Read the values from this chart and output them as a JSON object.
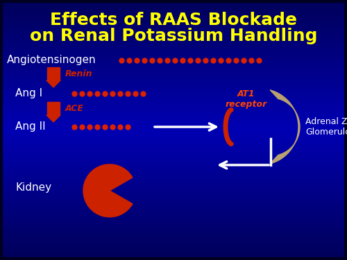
{
  "title_line1": "Effects of RAAS Blockade",
  "title_line2": "on Renal Potassium Handling",
  "title_color": "#FFFF00",
  "title_fontsize": 18,
  "bg_color_dark": "#000055",
  "bg_color_mid": "#0000AA",
  "bg_color_bright": "#0000CC",
  "text_color": "#FFFFFF",
  "red_color": "#CC2200",
  "dot_color": "#DD2200",
  "at1_color": "#FF4400",
  "adrenal_color": "#B8A070",
  "labels": {
    "angiotensinogen": "Angiotensinogen",
    "renin": "Renin",
    "ang1": "Ang I",
    "ace": "ACE",
    "ang2": "Ang II",
    "at1": "AT1\nreceptor",
    "adrenal": "Adrenal Zona\nGlomerulosa",
    "kidney": "Kidney"
  },
  "angiotensinogen_dots": 19,
  "ang1_dots": 10,
  "ang2_dots": 8
}
